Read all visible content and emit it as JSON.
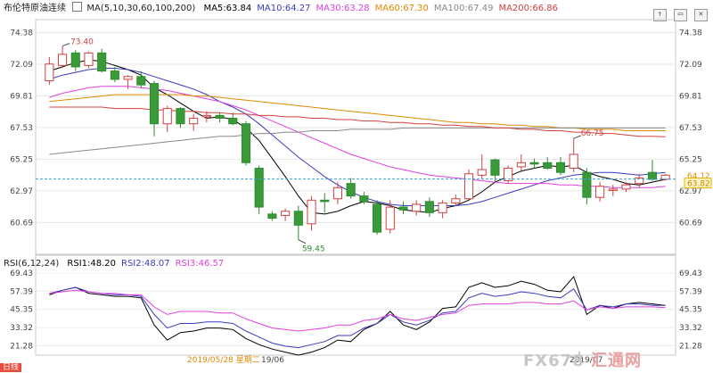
{
  "header": {
    "instrument": "布伦特原油连续",
    "ma_params": "MA(5,10,30,60,100,200)",
    "ma_values": [
      {
        "label": "MA5:63.84",
        "color": "#000000"
      },
      {
        "label": "MA10:64.27",
        "color": "#3b3bbd"
      },
      {
        "label": "MA30:63.28",
        "color": "#e040e0"
      },
      {
        "label": "MA60:67.30",
        "color": "#e08a00"
      },
      {
        "label": "MA100:67.49",
        "color": "#888888"
      },
      {
        "label": "MA200:66.86",
        "color": "#d04040"
      }
    ]
  },
  "rsi_header": {
    "params": "RSI(6,12,24)",
    "values": [
      {
        "label": "RSI1:48.20",
        "color": "#000000"
      },
      {
        "label": "RSI2:48.07",
        "color": "#3b3bbd"
      },
      {
        "label": "RSI3:46.57",
        "color": "#e040e0"
      }
    ]
  },
  "window_controls": [
    "↑",
    "▭",
    "✕"
  ],
  "footer": {
    "tag": "日线",
    "date_left": "2019/05/28 星期二",
    "date_mid": "19/06",
    "date_right": "2019/07",
    "logo_text": "FX678",
    "logo_accent": "汇通网"
  },
  "price_labels": {
    "high": "73.40",
    "low": "59.45",
    "recent_high": "66.75",
    "current": "64.12",
    "cursor": "63.82"
  },
  "colors": {
    "up": "#d04040",
    "down": "#2e8b2e",
    "up_fill": "#ffffff",
    "down_fill": "#3a9a3a"
  },
  "chart_data": {
    "type": "candlestick",
    "title": "布伦特原油连续",
    "y_ticks": [
      "74.38",
      "72.09",
      "69.81",
      "67.53",
      "65.25",
      "62.97",
      "60.69"
    ],
    "ylim": [
      58.4,
      75.3
    ],
    "rsi_ticks": [
      "69.43",
      "57.39",
      "45.35",
      "33.32",
      "21.28"
    ],
    "rsi_ylim": [
      15,
      73
    ],
    "candles": [
      {
        "o": 70.9,
        "h": 72.6,
        "l": 70.6,
        "c": 72.1
      },
      {
        "o": 72.0,
        "h": 73.4,
        "l": 71.8,
        "c": 72.8
      },
      {
        "o": 72.9,
        "h": 73.1,
        "l": 71.6,
        "c": 71.9
      },
      {
        "o": 72.0,
        "h": 73.0,
        "l": 71.8,
        "c": 72.9
      },
      {
        "o": 72.9,
        "h": 73.2,
        "l": 71.5,
        "c": 71.6
      },
      {
        "o": 71.6,
        "h": 71.9,
        "l": 70.8,
        "c": 71.0
      },
      {
        "o": 71.0,
        "h": 71.3,
        "l": 70.3,
        "c": 71.2
      },
      {
        "o": 71.2,
        "h": 71.6,
        "l": 70.4,
        "c": 70.6
      },
      {
        "o": 70.7,
        "h": 70.9,
        "l": 66.9,
        "c": 67.8
      },
      {
        "o": 67.8,
        "h": 69.1,
        "l": 67.2,
        "c": 68.9
      },
      {
        "o": 68.9,
        "h": 69.0,
        "l": 67.5,
        "c": 67.8
      },
      {
        "o": 67.8,
        "h": 68.5,
        "l": 67.3,
        "c": 68.2
      },
      {
        "o": 68.3,
        "h": 68.7,
        "l": 67.9,
        "c": 68.4
      },
      {
        "o": 68.4,
        "h": 68.6,
        "l": 67.9,
        "c": 68.2
      },
      {
        "o": 68.2,
        "h": 68.6,
        "l": 67.7,
        "c": 67.8
      },
      {
        "o": 67.8,
        "h": 68.0,
        "l": 64.8,
        "c": 65.0
      },
      {
        "o": 64.6,
        "h": 64.8,
        "l": 61.3,
        "c": 61.8
      },
      {
        "o": 61.3,
        "h": 61.5,
        "l": 60.8,
        "c": 61.0
      },
      {
        "o": 61.2,
        "h": 61.7,
        "l": 60.8,
        "c": 61.5
      },
      {
        "o": 61.5,
        "h": 61.9,
        "l": 59.45,
        "c": 60.5
      },
      {
        "o": 60.6,
        "h": 62.6,
        "l": 60.1,
        "c": 62.3
      },
      {
        "o": 62.3,
        "h": 62.8,
        "l": 61.4,
        "c": 62.2
      },
      {
        "o": 62.4,
        "h": 63.6,
        "l": 62.0,
        "c": 63.2
      },
      {
        "o": 63.5,
        "h": 63.9,
        "l": 62.4,
        "c": 62.6
      },
      {
        "o": 62.6,
        "h": 62.9,
        "l": 62.0,
        "c": 62.2
      },
      {
        "o": 62.0,
        "h": 62.3,
        "l": 59.8,
        "c": 60.0
      },
      {
        "o": 60.2,
        "h": 62.3,
        "l": 59.9,
        "c": 61.8
      },
      {
        "o": 61.8,
        "h": 62.2,
        "l": 61.3,
        "c": 61.6
      },
      {
        "o": 61.5,
        "h": 62.3,
        "l": 61.2,
        "c": 62.0
      },
      {
        "o": 62.2,
        "h": 62.5,
        "l": 61.1,
        "c": 61.4
      },
      {
        "o": 61.4,
        "h": 62.3,
        "l": 61.0,
        "c": 62.1
      },
      {
        "o": 62.1,
        "h": 62.7,
        "l": 61.9,
        "c": 62.4
      },
      {
        "o": 62.4,
        "h": 64.5,
        "l": 62.3,
        "c": 64.2
      },
      {
        "o": 64.1,
        "h": 65.6,
        "l": 63.8,
        "c": 64.5
      },
      {
        "o": 65.2,
        "h": 65.3,
        "l": 63.6,
        "c": 64.1
      },
      {
        "o": 63.7,
        "h": 64.8,
        "l": 63.5,
        "c": 64.6
      },
      {
        "o": 64.7,
        "h": 65.6,
        "l": 64.3,
        "c": 65.0
      },
      {
        "o": 65.0,
        "h": 65.3,
        "l": 64.6,
        "c": 64.9
      },
      {
        "o": 65.0,
        "h": 65.4,
        "l": 64.5,
        "c": 64.6
      },
      {
        "o": 65.0,
        "h": 65.4,
        "l": 64.1,
        "c": 64.3
      },
      {
        "o": 64.6,
        "h": 66.75,
        "l": 64.3,
        "c": 65.6
      },
      {
        "o": 64.3,
        "h": 64.6,
        "l": 62.0,
        "c": 62.5
      },
      {
        "o": 62.5,
        "h": 63.6,
        "l": 62.2,
        "c": 63.3
      },
      {
        "o": 63.0,
        "h": 63.4,
        "l": 62.6,
        "c": 63.1
      },
      {
        "o": 63.1,
        "h": 63.6,
        "l": 62.9,
        "c": 63.4
      },
      {
        "o": 63.5,
        "h": 64.2,
        "l": 63.2,
        "c": 63.9
      },
      {
        "o": 64.3,
        "h": 65.2,
        "l": 63.7,
        "c": 63.8
      },
      {
        "o": 63.8,
        "h": 64.2,
        "l": 63.7,
        "c": 64.1
      }
    ],
    "ma_series": {
      "MA5": [
        71.6,
        71.9,
        72.2,
        72.4,
        72.3,
        72.0,
        71.7,
        71.3,
        70.4,
        69.9,
        69.3,
        68.7,
        68.2,
        68.3,
        68.1,
        67.5,
        66.6,
        65.3,
        64.0,
        62.6,
        61.4,
        61.3,
        61.5,
        61.9,
        62.2,
        62.1,
        61.9,
        61.6,
        61.5,
        61.4,
        61.7,
        61.9,
        62.3,
        62.9,
        63.6,
        64.0,
        64.4,
        64.6,
        64.8,
        64.7,
        64.8,
        64.3,
        64.0,
        63.8,
        63.5,
        63.4,
        63.6,
        63.8
      ],
      "MA10": [
        71.0,
        71.3,
        71.5,
        71.7,
        71.8,
        71.8,
        71.7,
        71.5,
        71.2,
        70.9,
        70.6,
        70.3,
        69.9,
        69.4,
        69.0,
        68.5,
        67.8,
        67.0,
        66.2,
        65.4,
        64.7,
        64.0,
        63.4,
        62.9,
        62.5,
        62.2,
        62.0,
        61.9,
        61.9,
        61.9,
        61.9,
        61.9,
        62.0,
        62.2,
        62.5,
        62.8,
        63.1,
        63.4,
        63.7,
        63.9,
        64.1,
        64.2,
        64.3,
        64.3,
        64.2,
        64.1,
        64.2,
        64.3
      ],
      "MA30": [
        69.7,
        70.0,
        70.2,
        70.4,
        70.5,
        70.5,
        70.5,
        70.4,
        70.3,
        70.2,
        70.0,
        69.8,
        69.6,
        69.4,
        69.1,
        68.8,
        68.4,
        68.0,
        67.6,
        67.2,
        66.8,
        66.4,
        66.0,
        65.6,
        65.3,
        65.0,
        64.7,
        64.5,
        64.3,
        64.1,
        64.0,
        63.9,
        63.8,
        63.7,
        63.6,
        63.5,
        63.5,
        63.5,
        63.5,
        63.4,
        63.4,
        63.3,
        63.3,
        63.2,
        63.2,
        63.2,
        63.2,
        63.3
      ],
      "MA60": [
        69.4,
        69.5,
        69.6,
        69.7,
        69.8,
        69.9,
        69.9,
        69.9,
        69.9,
        69.9,
        69.9,
        69.8,
        69.8,
        69.7,
        69.6,
        69.5,
        69.4,
        69.3,
        69.2,
        69.1,
        69.0,
        68.9,
        68.8,
        68.7,
        68.6,
        68.5,
        68.4,
        68.3,
        68.2,
        68.1,
        68.0,
        67.9,
        67.9,
        67.8,
        67.8,
        67.7,
        67.7,
        67.6,
        67.6,
        67.5,
        67.5,
        67.4,
        67.4,
        67.4,
        67.3,
        67.3,
        67.3,
        67.3
      ],
      "MA100": [
        65.6,
        65.7,
        65.8,
        65.9,
        66.0,
        66.1,
        66.2,
        66.3,
        66.4,
        66.5,
        66.6,
        66.7,
        66.8,
        66.9,
        66.9,
        67.0,
        67.1,
        67.1,
        67.2,
        67.2,
        67.3,
        67.3,
        67.3,
        67.4,
        67.4,
        67.4,
        67.4,
        67.5,
        67.5,
        67.5,
        67.5,
        67.5,
        67.5,
        67.5,
        67.5,
        67.5,
        67.5,
        67.5,
        67.5,
        67.5,
        67.5,
        67.5,
        67.5,
        67.5,
        67.5,
        67.5,
        67.5,
        67.5
      ],
      "MA200": [
        69.0,
        69.0,
        69.0,
        69.0,
        69.0,
        68.9,
        68.9,
        68.9,
        68.8,
        68.8,
        68.7,
        68.7,
        68.6,
        68.6,
        68.5,
        68.5,
        68.4,
        68.4,
        68.3,
        68.3,
        68.2,
        68.2,
        68.1,
        68.1,
        68.0,
        68.0,
        67.9,
        67.9,
        67.8,
        67.8,
        67.7,
        67.7,
        67.6,
        67.6,
        67.5,
        67.5,
        67.4,
        67.4,
        67.3,
        67.3,
        67.2,
        67.2,
        67.1,
        67.1,
        67.0,
        66.9,
        66.9,
        66.86
      ]
    },
    "rsi_series": {
      "RSI1": [
        55,
        58,
        60,
        56,
        55,
        54,
        54,
        53,
        35,
        25,
        30,
        31,
        33,
        33,
        32,
        26,
        22,
        19,
        17,
        15,
        17,
        20,
        25,
        24,
        32,
        36,
        44,
        35,
        32,
        37,
        46,
        47,
        60,
        63,
        60,
        61,
        64,
        62,
        58,
        57,
        67,
        42,
        48,
        46,
        49,
        50,
        49,
        48
      ],
      "RSI2": [
        56,
        58,
        60,
        57,
        56,
        55,
        55,
        54,
        42,
        33,
        36,
        36,
        37,
        37,
        36,
        31,
        27,
        23,
        21,
        20,
        22,
        24,
        28,
        28,
        33,
        36,
        42,
        37,
        35,
        38,
        43,
        44,
        53,
        56,
        54,
        55,
        57,
        56,
        54,
        53,
        59,
        45,
        48,
        47,
        49,
        49,
        48,
        48
      ],
      "RSI3": [
        56,
        57,
        58,
        57,
        56,
        56,
        55,
        55,
        47,
        42,
        44,
        44,
        44,
        43,
        43,
        39,
        36,
        33,
        32,
        31,
        32,
        33,
        35,
        35,
        38,
        39,
        42,
        39,
        38,
        40,
        42,
        43,
        48,
        49,
        49,
        49,
        50,
        50,
        49,
        49,
        51,
        45,
        47,
        46,
        47,
        47,
        47,
        46.57
      ]
    }
  }
}
